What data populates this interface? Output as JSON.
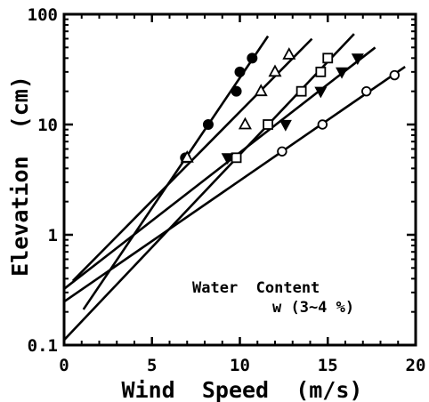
{
  "chart_data": {
    "type": "scatter",
    "title": "",
    "xlabel": "Wind  Speed  (m/s)",
    "ylabel": "Elevation  (cm)",
    "xlim": [
      0,
      20
    ],
    "ylim": [
      0.1,
      100
    ],
    "x_scale": "linear",
    "y_scale": "log",
    "x_ticks": [
      "0",
      "5",
      "10",
      "15",
      "20"
    ],
    "y_ticks": [
      "0.1",
      "1",
      "10",
      "100"
    ],
    "grid": false,
    "annotation_lines": [
      "Water  Content",
      "w (3~4 %)"
    ],
    "series": [
      {
        "marker": "filled-circle",
        "x": [
          6.9,
          8.2,
          9.8,
          10.0,
          10.7
        ],
        "y": [
          5,
          10,
          20,
          30,
          40
        ],
        "fit_x": [
          1.1,
          11.6
        ]
      },
      {
        "marker": "open-triangle",
        "x": [
          7.0,
          10.3,
          11.2,
          12.0,
          12.8
        ],
        "y": [
          5,
          10,
          20,
          30,
          43
        ],
        "fit_x": [
          0.5,
          14.1
        ]
      },
      {
        "marker": "open-square",
        "x": [
          9.8,
          11.6,
          13.5,
          14.6,
          15.0
        ],
        "y": [
          5,
          10,
          20,
          30,
          40
        ],
        "fit_x": [
          0,
          16.5
        ]
      },
      {
        "marker": "filled-triangle-down",
        "x": [
          9.3,
          12.6,
          14.6,
          15.8,
          16.7
        ],
        "y": [
          5,
          10,
          20,
          30,
          40
        ],
        "fit_x": [
          0,
          17.7
        ]
      },
      {
        "marker": "open-circle",
        "x": [
          12.4,
          14.7,
          17.2,
          18.8
        ],
        "y": [
          5.7,
          10,
          20,
          28
        ],
        "fit_x": [
          0,
          19.4
        ]
      }
    ]
  }
}
